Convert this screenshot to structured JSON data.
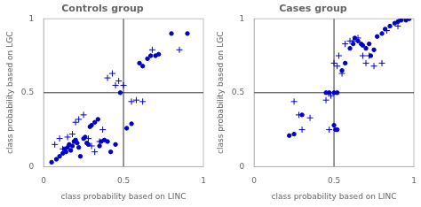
{
  "chart_data": [
    {
      "type": "scatter",
      "title": "Controls group",
      "xlabel": "class probability based on LINC",
      "ylabel": "class probability based on LGC",
      "xlim": [
        0,
        1
      ],
      "ylim": [
        0,
        1
      ],
      "xticks": [
        0,
        0.5,
        1
      ],
      "yticks": [
        0,
        0.5,
        1
      ],
      "grid": false,
      "vline": 0.5,
      "hline": 0.5,
      "series": [
        {
          "marker": "circle",
          "color": "#0000CC",
          "x": [
            0.05,
            0.08,
            0.1,
            0.12,
            0.13,
            0.14,
            0.15,
            0.16,
            0.17,
            0.18,
            0.19,
            0.2,
            0.21,
            0.22,
            0.23,
            0.25,
            0.26,
            0.27,
            0.28,
            0.29,
            0.3,
            0.32,
            0.34,
            0.35,
            0.36,
            0.38,
            0.4,
            0.42,
            0.45,
            0.48,
            0.52,
            0.55,
            0.6,
            0.62,
            0.65,
            0.67,
            0.7,
            0.72,
            0.8,
            0.9
          ],
          "values": [
            0.03,
            0.05,
            0.07,
            0.09,
            0.12,
            0.1,
            0.13,
            0.15,
            0.11,
            0.14,
            0.17,
            0.18,
            0.16,
            0.13,
            0.07,
            0.19,
            0.2,
            0.16,
            0.15,
            0.27,
            0.28,
            0.3,
            0.32,
            0.14,
            0.17,
            0.18,
            0.17,
            0.1,
            0.15,
            0.5,
            0.26,
            0.29,
            0.7,
            0.68,
            0.73,
            0.75,
            0.75,
            0.76,
            0.9,
            0.9
          ]
        },
        {
          "marker": "plus",
          "color": "#0000CC",
          "x": [
            0.07,
            0.1,
            0.12,
            0.15,
            0.18,
            0.2,
            0.22,
            0.25,
            0.28,
            0.3,
            0.32,
            0.35,
            0.37,
            0.4,
            0.43,
            0.45,
            0.47,
            0.5,
            0.55,
            0.58,
            0.62,
            0.68,
            0.85
          ],
          "values": [
            0.15,
            0.19,
            0.12,
            0.2,
            0.22,
            0.3,
            0.32,
            0.35,
            0.19,
            0.14,
            0.1,
            0.17,
            0.25,
            0.6,
            0.63,
            0.55,
            0.58,
            0.55,
            0.44,
            0.45,
            0.44,
            0.79,
            0.79
          ]
        }
      ]
    },
    {
      "type": "scatter",
      "title": "Cases group",
      "xlabel": "class probability based on LINC",
      "ylabel": "class probability based on LGC",
      "xlim": [
        0,
        1
      ],
      "ylim": [
        0,
        1
      ],
      "xticks": [
        0,
        0.5,
        1
      ],
      "yticks": [
        0,
        0.5,
        1
      ],
      "grid": false,
      "vline": 0.5,
      "hline": 0.5,
      "series": [
        {
          "marker": "circle",
          "color": "#0000CC",
          "x": [
            0.22,
            0.45,
            0.47,
            0.5,
            0.52,
            0.5,
            0.51,
            0.52,
            0.55,
            0.57,
            0.6,
            0.62,
            0.63,
            0.65,
            0.67,
            0.68,
            0.7,
            0.72,
            0.73,
            0.75,
            0.77,
            0.8,
            0.82,
            0.85,
            0.88,
            0.9,
            0.92,
            0.95,
            0.97,
            0.25,
            0.3
          ],
          "values": [
            0.21,
            0.5,
            0.5,
            0.5,
            0.5,
            0.28,
            0.25,
            0.25,
            0.65,
            0.7,
            0.8,
            0.83,
            0.87,
            0.85,
            0.83,
            0.82,
            0.8,
            0.83,
            0.75,
            0.79,
            0.88,
            0.9,
            0.93,
            0.95,
            0.97,
            0.98,
            0.99,
            0.99,
            1.0,
            0.22,
            0.35
          ]
        },
        {
          "marker": "plus",
          "color": "#0000CC",
          "x": [
            0.25,
            0.28,
            0.35,
            0.45,
            0.48,
            0.5,
            0.52,
            0.53,
            0.55,
            0.57,
            0.6,
            0.62,
            0.65,
            0.68,
            0.7,
            0.72,
            0.75,
            0.8,
            0.83,
            0.9,
            0.92,
            0.3,
            0.47
          ],
          "values": [
            0.44,
            0.35,
            0.33,
            0.45,
            0.48,
            0.7,
            0.68,
            0.75,
            0.63,
            0.83,
            0.85,
            0.85,
            0.87,
            0.75,
            0.7,
            0.75,
            0.68,
            0.7,
            0.92,
            0.95,
            1.0,
            0.25,
            0.25
          ]
        }
      ]
    }
  ]
}
